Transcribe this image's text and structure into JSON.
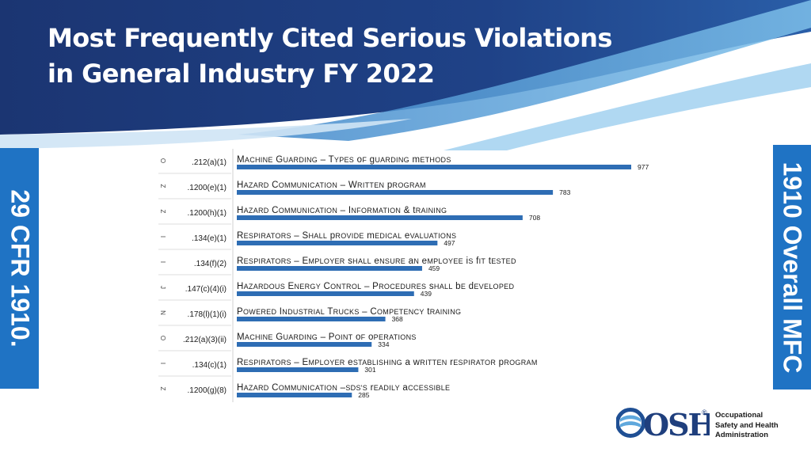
{
  "slide": {
    "title_line1": "Most Frequently Cited Serious Violations",
    "title_line2": "in General Industry FY 2022",
    "left_tab": "29 CFR 1910.",
    "right_tab": "1910 Overall MFC"
  },
  "logo": {
    "name": "OSHA",
    "registered": "®",
    "line1": "Occupational",
    "line2": "Safety and Health",
    "line3": "Administration"
  },
  "colors": {
    "bar": "#2e6db4",
    "tab": "#1f73c4",
    "banner_dark": "#1c3a78",
    "banner_light": "#5fa8dd"
  },
  "chart_data": {
    "type": "bar",
    "orientation": "horizontal",
    "categories": [
      ".212(a)(1)",
      ".1200(e)(1)",
      ".1200(h)(1)",
      ".134(e)(1)",
      ".134(f)(2)",
      ".147(c)(4)(i)",
      ".178(l)(1)(i)",
      ".212(a)(3)(ii)",
      ".134(c)(1)",
      ".1200(g)(8)"
    ],
    "side_letters": [
      "O",
      "Z",
      "Z",
      "I",
      "I",
      "J",
      "N",
      "O",
      "I",
      "Z"
    ],
    "descriptions": [
      "Machine Guarding – Types of guarding methods",
      "Hazard Communication – Written program",
      "Hazard Communication – Information & training",
      "Respirators – Shall provide medical evaluations",
      "Respirators – Employer shall ensure an employee is fit tested",
      "Hazardous Energy Control – Procedures shall be developed",
      "Powered Industrial Trucks – Competency training",
      "Machine Guarding – Point of operations",
      "Respirators – Employer establishing a written respirator program",
      "Hazard Communication –SDS's readily accessible"
    ],
    "values": [
      977,
      783,
      708,
      497,
      459,
      439,
      368,
      334,
      301,
      285
    ],
    "data_labels": [
      "977",
      "783",
      "708",
      "497",
      "459",
      "439",
      "368",
      "334",
      "301",
      "285"
    ],
    "xlim": [
      0,
      977
    ],
    "grid": false,
    "legend": "none"
  }
}
